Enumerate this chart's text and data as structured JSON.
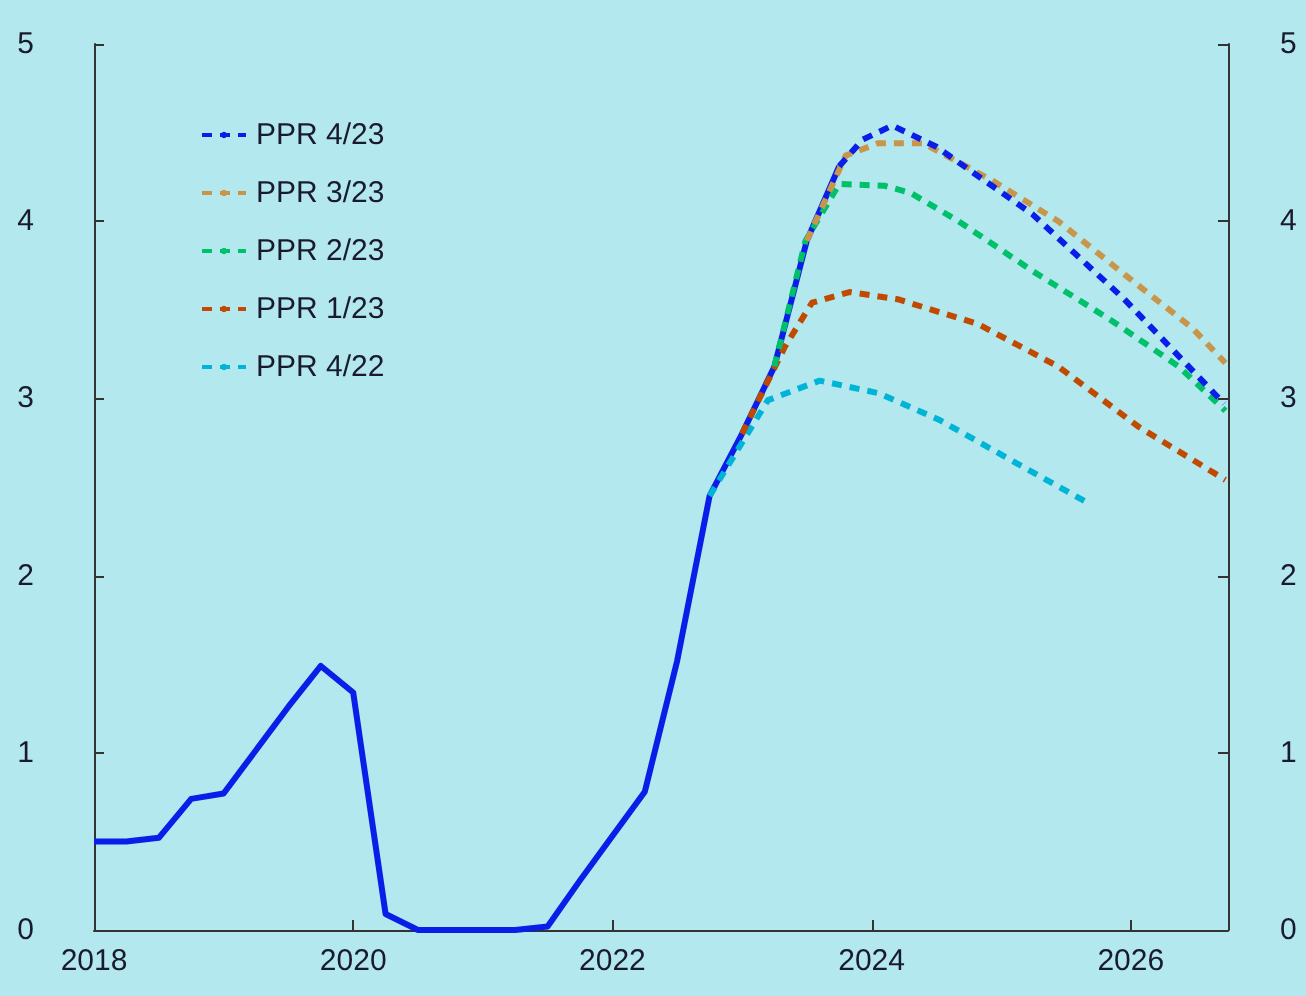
{
  "chart_data": {
    "type": "line",
    "xlim": [
      2018,
      2026.75
    ],
    "xticks": [
      2018,
      2020,
      2022,
      2024,
      2026
    ],
    "ylim": [
      0,
      5
    ],
    "yticks": [
      0,
      1,
      2,
      3,
      4,
      5
    ],
    "y2lim": [
      0,
      5
    ],
    "y2ticks": [
      0,
      1,
      2,
      3,
      4,
      5
    ],
    "grid": false,
    "legend": "top left",
    "marker": "none",
    "series": [
      {
        "type": "line",
        "line_style": "solid",
        "color": "#0a1ee8",
        "x": [
          2018,
          2018.25,
          2018.5,
          2018.75,
          2019,
          2019.5,
          2019.75,
          2020,
          2020.25,
          2020.5,
          2021.25,
          2021.5,
          2021.75,
          2022,
          2022.25,
          2022.5,
          2022.75,
          2023,
          2023.25,
          2023.5,
          2023.75
        ],
        "values": [
          0.5,
          0.5,
          0.52,
          0.74,
          0.77,
          1.26,
          1.49,
          1.34,
          0.09,
          0,
          0,
          0.02,
          0.28,
          0.53,
          0.78,
          1.52,
          2.45,
          2.8,
          3.18,
          3.89,
          4.31
        ]
      },
      {
        "name": "PPR 4/23",
        "line_style": "dashed",
        "color": "#0a1ee8",
        "x": [
          2023.75,
          2023.93,
          2024.16,
          2024.5,
          2025.24,
          2025.95,
          2026.72
        ],
        "values": [
          4.31,
          4.46,
          4.54,
          4.42,
          4.04,
          3.56,
          2.97
        ]
      },
      {
        "name": "PPR 3/23",
        "line_style": "dashed",
        "color": "#c8964b",
        "x": [
          2023.5,
          2023.8,
          2024.05,
          2024.4,
          2024.93,
          2025.44,
          2025.95,
          2026.47,
          2026.73
        ],
        "values": [
          3.89,
          4.37,
          4.44,
          4.44,
          4.23,
          4.0,
          3.7,
          3.4,
          3.2
        ]
      },
      {
        "name": "PPR 2/23",
        "line_style": "dashed",
        "color": "#00c06a",
        "x": [
          2023.25,
          2023.49,
          2023.75,
          2024.1,
          2024.3,
          2024.67,
          2025.24,
          2025.85,
          2026.37,
          2026.73
        ],
        "values": [
          3.18,
          3.89,
          4.21,
          4.2,
          4.16,
          4.0,
          3.72,
          3.44,
          3.18,
          2.93
        ]
      },
      {
        "name": "PPR 1/23",
        "line_style": "dashed",
        "color": "#c04a00",
        "x": [
          2023,
          2023.33,
          2023.54,
          2023.83,
          2024.2,
          2024.82,
          2025.44,
          2026.06,
          2026.73
        ],
        "values": [
          2.8,
          3.29,
          3.54,
          3.6,
          3.56,
          3.42,
          3.18,
          2.84,
          2.54
        ]
      },
      {
        "name": "PPR 4/22",
        "line_style": "dashed",
        "color": "#00b4d8",
        "x": [
          2022.75,
          2023,
          2023.2,
          2023.6,
          2024.05,
          2024.52,
          2025.08,
          2025.67
        ],
        "values": [
          2.45,
          2.75,
          2.99,
          3.1,
          3.03,
          2.88,
          2.65,
          2.41
        ]
      }
    ]
  }
}
